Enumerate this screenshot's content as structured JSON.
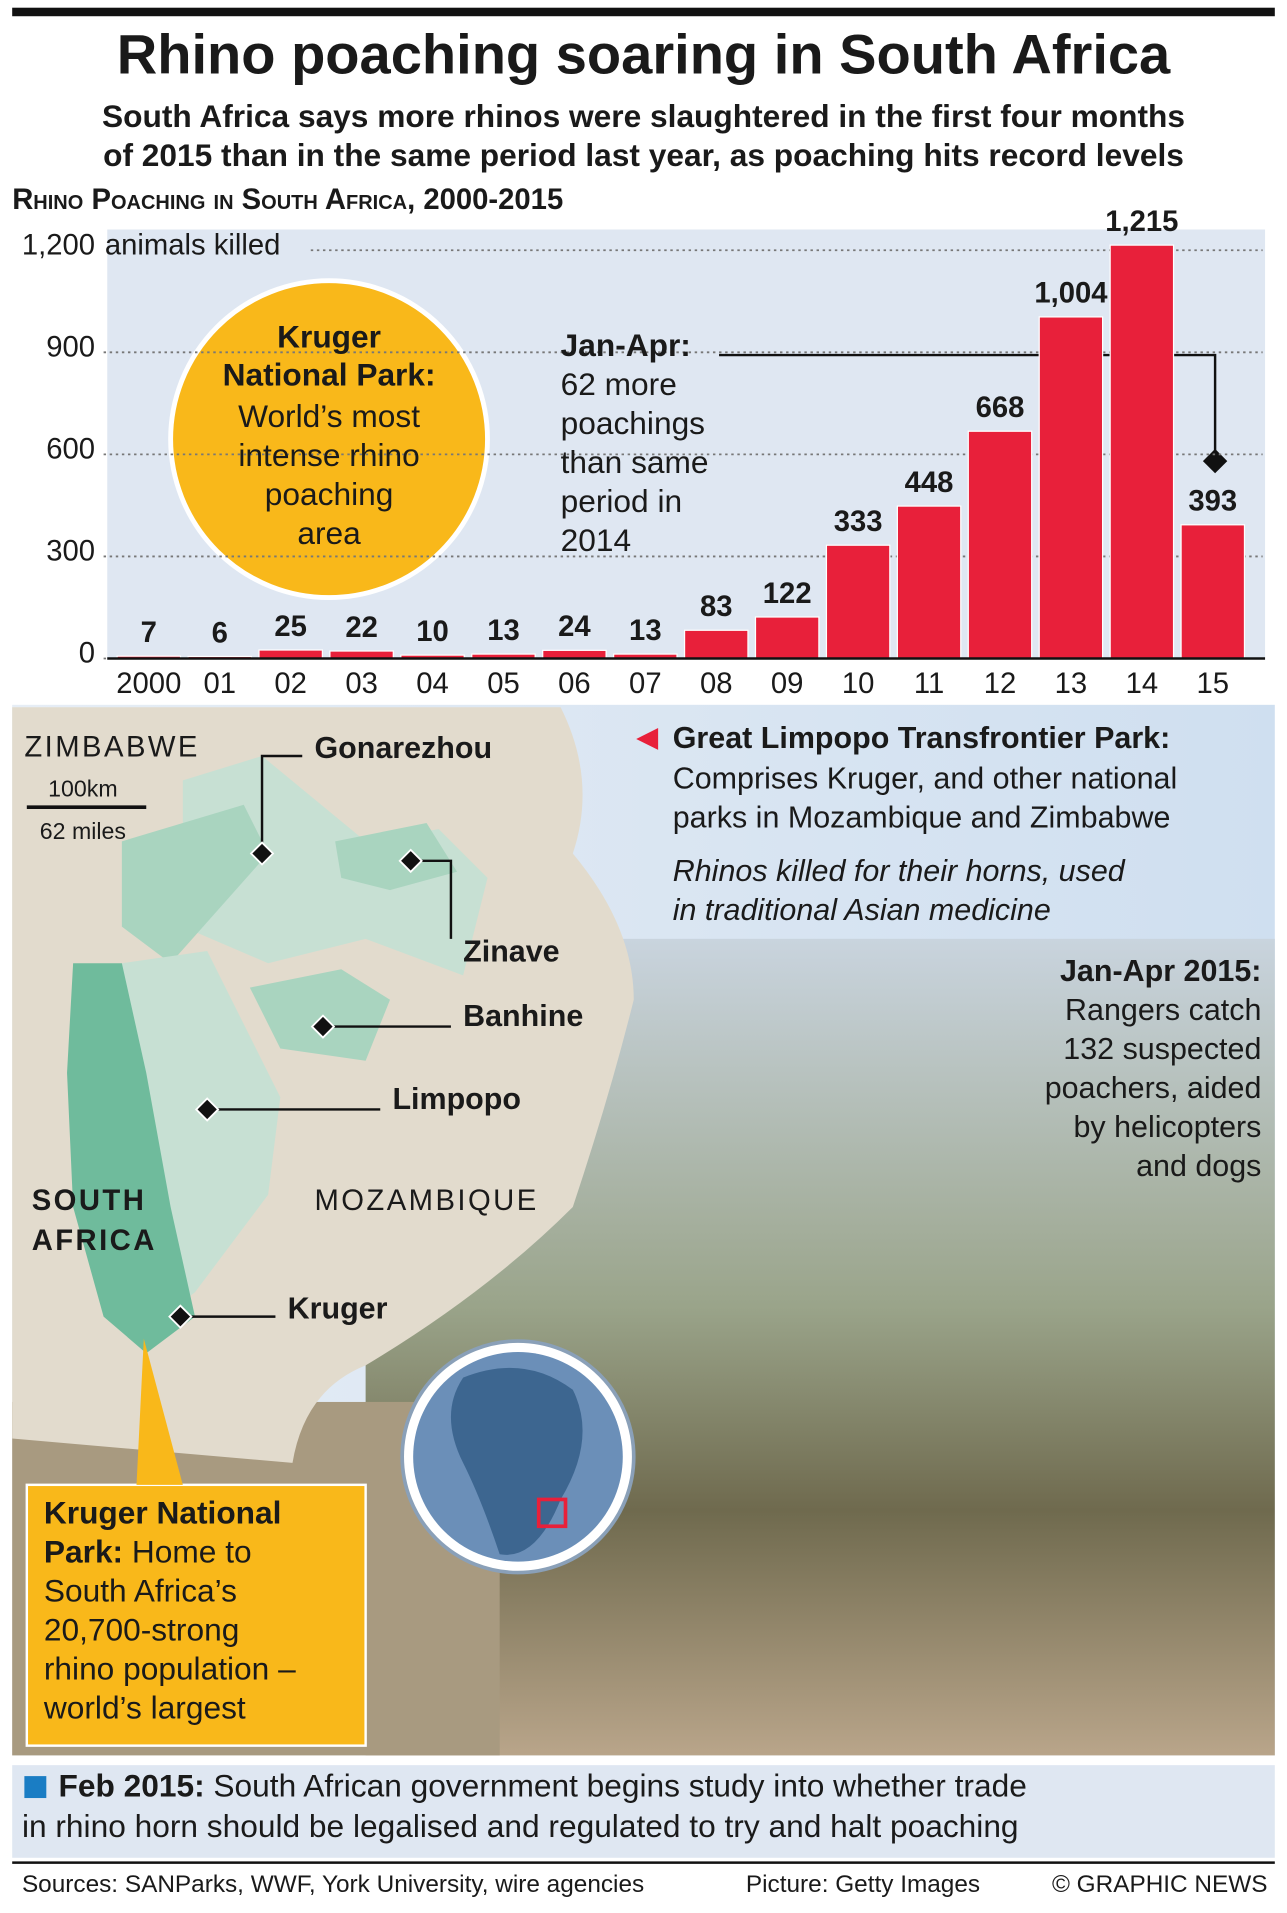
{
  "header": {
    "title": "Rhino poaching soaring in South Africa",
    "subtitle_lines": [
      "South Africa says more rhinos were slaughtered in the first four months",
      "of 2015 than in the same period last year, as poaching hits record levels"
    ]
  },
  "chart_data": {
    "type": "bar",
    "title": "Rhino Poaching in South Africa, 2000-2015",
    "y_label": "animals killed",
    "categories": [
      "2000",
      "01",
      "02",
      "03",
      "04",
      "05",
      "06",
      "07",
      "08",
      "09",
      "10",
      "11",
      "12",
      "13",
      "14",
      "15"
    ],
    "values": [
      7,
      6,
      25,
      22,
      10,
      13,
      24,
      13,
      83,
      122,
      333,
      448,
      668,
      1004,
      1215,
      393
    ],
    "value_labels": [
      "7",
      "6",
      "25",
      "22",
      "10",
      "13",
      "24",
      "13",
      "83",
      "122",
      "333",
      "448",
      "668",
      "1,004",
      "1,215",
      "393"
    ],
    "color": "#e8203a",
    "ylim": [
      0,
      1200
    ],
    "yticks": [
      0,
      300,
      600,
      900,
      {
        "value": 1200,
        "label": "1,200"
      }
    ],
    "grid": true,
    "annotation": {
      "title": "Jan-Apr:",
      "lines": [
        "62 more",
        "poachings",
        "than same",
        "period in",
        "2014"
      ]
    }
  },
  "kruger_circle": {
    "title_lines": [
      "Kruger",
      "National Park:"
    ],
    "lines": [
      "World’s most",
      "intense rhino",
      "poaching",
      "area"
    ]
  },
  "map": {
    "countries": {
      "zimbabwe": "ZIMBABWE",
      "south_africa": [
        "SOUTH",
        "AFRICA"
      ],
      "mozambique": "MOZAMBIQUE"
    },
    "scale": [
      "100km",
      "62 miles"
    ],
    "parks": [
      "Gonarezhou",
      "Zinave",
      "Banhine",
      "Limpopo",
      "Kruger"
    ]
  },
  "transfrontier": {
    "title": "Great Limpopo Transfrontier Park:",
    "lines": [
      "Comprises Kruger, and other national",
      "parks in Mozambique and Zimbabwe"
    ],
    "italic_lines": [
      "Rhinos killed for their horns, used",
      "in traditional Asian medicine"
    ]
  },
  "rangers": {
    "title": "Jan-Apr 2015:",
    "lines": [
      "Rangers catch",
      "132 suspected",
      "poachers, aided",
      "by helicopters",
      "and dogs"
    ]
  },
  "kruger_box": {
    "title_lines": [
      "Kruger National",
      "Park:"
    ],
    "lines": [
      " Home to",
      "South Africa’s",
      "20,700-strong",
      "rhino population –",
      "world’s largest"
    ]
  },
  "footer": {
    "title": "Feb 2015:",
    "lines": [
      " South African government begins study into whether trade",
      "in rhino horn should be legalised and regulated to try and halt poaching"
    ],
    "sources": "Sources: SANParks, WWF, York University, wire agencies",
    "picture": "Picture: Getty Images",
    "credit": "© GRAPHIC NEWS"
  }
}
